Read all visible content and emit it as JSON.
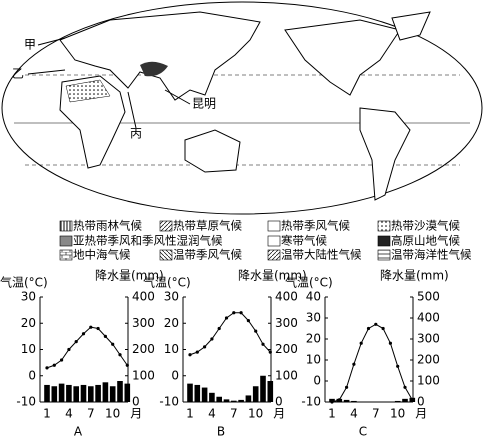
{
  "map": {
    "labels": [
      "甲",
      "乙",
      "丙",
      "昆明"
    ]
  },
  "legend": [
    "热带雨林气候",
    "热带草原气候",
    "热带季风气候",
    "热带沙漠气候",
    "亚热带季风和季风性湿润气候",
    "寒带气候",
    "高原山地气候",
    "地中海气候",
    "温带季风气候",
    "温带大陆性气候",
    "温带海洋性气候"
  ],
  "chart_data": [
    {
      "type": "climograph",
      "letter": "A",
      "y_label": "气温(°C)",
      "y2_label": "降水量(mm)",
      "x_unit": "月",
      "categories": [
        1,
        null,
        null,
        4,
        null,
        null,
        7,
        null,
        null,
        10,
        null,
        null
      ],
      "ylim": [
        -10,
        30
      ],
      "yticks": [
        -10,
        0,
        10,
        20,
        30
      ],
      "y2lim": [
        0,
        400
      ],
      "y2ticks": [
        0,
        100,
        200,
        300,
        400
      ],
      "temperature": [
        3,
        4,
        6,
        10,
        13,
        16,
        18.5,
        18,
        15,
        12,
        8,
        4
      ],
      "precipitation": [
        65,
        60,
        70,
        65,
        60,
        65,
        60,
        65,
        75,
        60,
        80,
        70
      ]
    },
    {
      "type": "climograph",
      "letter": "B",
      "y_label": "气温(°C)",
      "y2_label": "降水量(mm)",
      "x_unit": "月",
      "categories": [
        1,
        null,
        null,
        4,
        null,
        null,
        7,
        null,
        null,
        10,
        null,
        null
      ],
      "ylim": [
        -10,
        30
      ],
      "yticks": [
        -10,
        0,
        10,
        20,
        30
      ],
      "y2lim": [
        0,
        400
      ],
      "y2ticks": [
        0,
        100,
        200,
        300,
        400
      ],
      "temperature": [
        8,
        9,
        11,
        14,
        18,
        22,
        24,
        24,
        21,
        17,
        12,
        9
      ],
      "precipitation": [
        70,
        65,
        55,
        35,
        20,
        10,
        5,
        8,
        25,
        60,
        100,
        80
      ]
    },
    {
      "type": "climograph",
      "letter": "C",
      "y_label": "气温(°C)",
      "y2_label": "降水量(mm)",
      "x_unit": "月",
      "categories": [
        1,
        null,
        null,
        4,
        null,
        null,
        7,
        null,
        null,
        10,
        null,
        null
      ],
      "ylim": [
        -10,
        40
      ],
      "yticks": [
        -10,
        0,
        10,
        20,
        30,
        40
      ],
      "y2lim": [
        0,
        500
      ],
      "y2ticks": [
        0,
        100,
        200,
        300,
        400,
        500
      ],
      "temperature": [
        -10,
        -9,
        -3,
        8,
        18,
        25,
        27,
        25,
        18,
        7,
        -3,
        -9
      ],
      "precipitation": [
        15,
        15,
        10,
        5,
        0,
        0,
        0,
        0,
        0,
        5,
        15,
        20
      ]
    }
  ]
}
